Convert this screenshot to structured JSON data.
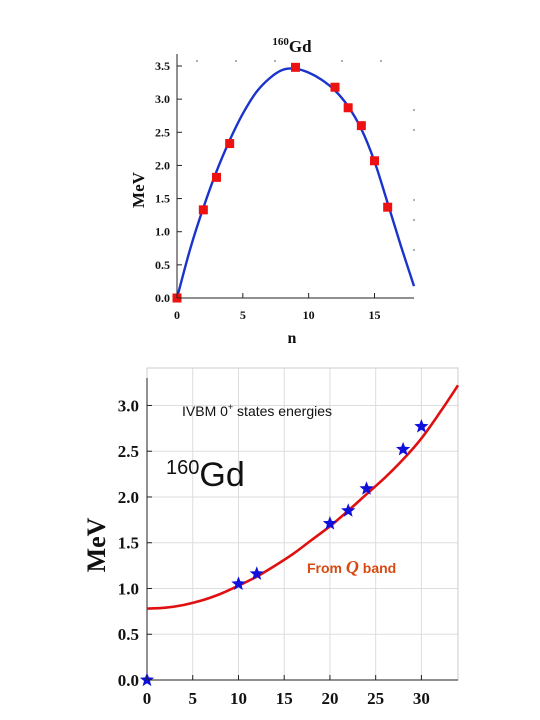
{
  "chart_data": [
    {
      "type": "scatter",
      "title": "160Gd",
      "title_mass": "160",
      "title_element": "Gd",
      "xlabel": "n",
      "ylabel": "MeV",
      "xlim": [
        0,
        18
      ],
      "ylim": [
        0,
        3.5
      ],
      "x_ticks": [
        0,
        5,
        10,
        15
      ],
      "y_ticks": [
        0.0,
        0.5,
        1.0,
        1.5,
        2.0,
        2.5,
        3.0,
        3.5
      ],
      "x_tick_labels": [
        "0",
        "5",
        "10",
        "15"
      ],
      "y_tick_labels": [
        "0.0",
        "0.5",
        "1.0",
        "1.5",
        "2.0",
        "2.5",
        "3.0",
        "3.5"
      ],
      "grid": false,
      "series": [
        {
          "kind": "points",
          "marker": "square",
          "color": "#ee1111",
          "x": [
            0,
            2,
            3,
            4,
            9,
            12,
            13,
            14,
            15,
            16
          ],
          "y": [
            0.0,
            1.33,
            1.82,
            2.33,
            3.48,
            3.18,
            2.87,
            2.6,
            2.07,
            1.37
          ]
        },
        {
          "kind": "line",
          "color": "#1a33cc",
          "x": [
            0,
            1,
            2,
            3,
            4,
            5,
            6,
            7,
            8,
            9,
            10,
            11,
            12,
            13,
            14,
            15,
            16,
            17,
            18
          ],
          "y": [
            0.0,
            0.74,
            1.36,
            1.91,
            2.38,
            2.78,
            3.1,
            3.31,
            3.44,
            3.46,
            3.4,
            3.29,
            3.13,
            2.89,
            2.55,
            2.06,
            1.43,
            0.79,
            0.18
          ]
        }
      ]
    },
    {
      "type": "scatter",
      "title": "",
      "xlabel": "",
      "ylabel": "MeV",
      "xlim": [
        0,
        34
      ],
      "ylim": [
        0,
        3.3
      ],
      "x_ticks": [
        0,
        5,
        10,
        15,
        20,
        25,
        30
      ],
      "y_ticks": [
        0.0,
        0.5,
        1.0,
        1.5,
        2.0,
        2.5,
        3.0
      ],
      "x_tick_labels": [
        "0",
        "5",
        "10",
        "15",
        "20",
        "25",
        "30"
      ],
      "y_tick_labels": [
        "0.0",
        "0.5",
        "1.0",
        "1.5",
        "2.0",
        "2.5",
        "3.0"
      ],
      "grid": true,
      "annotations": [
        {
          "text": "IVBM 0",
          "sup": "+",
          "text_after": " states energies"
        },
        {
          "text": "160Gd",
          "mass": "160",
          "element": "Gd"
        },
        {
          "text": "From  band",
          "before": "From ",
          "symbol": "Q",
          "after": " band"
        }
      ],
      "series": [
        {
          "kind": "points",
          "marker": "star",
          "color": "#1010dd",
          "x": [
            0,
            10,
            12,
            20,
            22,
            24,
            28,
            30
          ],
          "y": [
            0.0,
            1.05,
            1.16,
            1.71,
            1.85,
            2.09,
            2.52,
            2.77
          ]
        },
        {
          "kind": "line",
          "color": "#e01010",
          "x": [
            0,
            2,
            4,
            6,
            8,
            10,
            12,
            14,
            16,
            18,
            20,
            22,
            24,
            26,
            28,
            30,
            32,
            34
          ],
          "y": [
            0.78,
            0.79,
            0.82,
            0.87,
            0.94,
            1.03,
            1.13,
            1.25,
            1.38,
            1.53,
            1.68,
            1.85,
            2.03,
            2.21,
            2.41,
            2.64,
            2.92,
            3.22
          ]
        }
      ]
    }
  ]
}
